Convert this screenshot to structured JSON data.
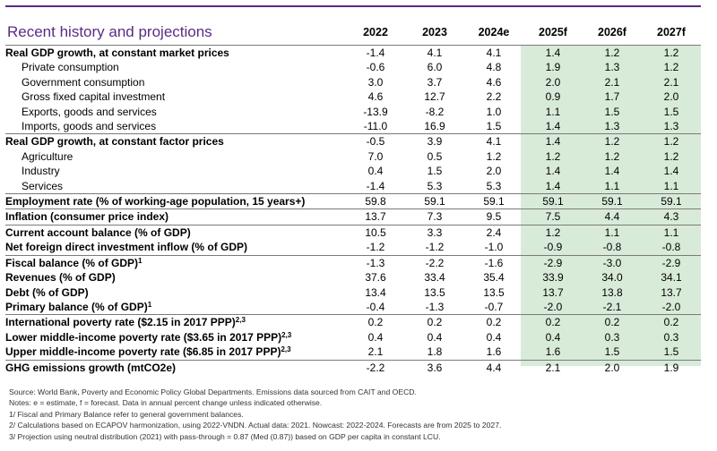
{
  "title": "Recent history and projections",
  "years": [
    "2022",
    "2023",
    "2024e",
    "2025f",
    "2026f",
    "2027f"
  ],
  "rows": [
    {
      "label": "Real GDP growth, at constant market prices",
      "level": "main",
      "sup": "",
      "values": [
        "-1.4",
        "4.1",
        "4.1",
        "1.4",
        "1.2",
        "1.2"
      ]
    },
    {
      "label": "Private consumption",
      "level": "sub",
      "sup": "",
      "values": [
        "-0.6",
        "6.0",
        "4.8",
        "1.9",
        "1.3",
        "1.2"
      ]
    },
    {
      "label": "Government consumption",
      "level": "sub",
      "sup": "",
      "values": [
        "3.0",
        "3.7",
        "4.6",
        "2.0",
        "2.1",
        "2.1"
      ]
    },
    {
      "label": "Gross fixed capital investment",
      "level": "sub",
      "sup": "",
      "values": [
        "4.6",
        "12.7",
        "2.2",
        "0.9",
        "1.7",
        "2.0"
      ]
    },
    {
      "label": "Exports, goods and services",
      "level": "sub",
      "sup": "",
      "values": [
        "-13.9",
        "-8.2",
        "1.0",
        "1.1",
        "1.5",
        "1.5"
      ]
    },
    {
      "label": "Imports, goods and services",
      "level": "sub",
      "sup": "",
      "values": [
        "-11.0",
        "16.9",
        "1.5",
        "1.4",
        "1.3",
        "1.3"
      ]
    },
    {
      "label": "Real GDP growth, at constant factor prices",
      "level": "main",
      "sup": "",
      "values": [
        "-0.5",
        "3.9",
        "4.1",
        "1.4",
        "1.2",
        "1.2"
      ]
    },
    {
      "label": "Agriculture",
      "level": "sub",
      "sup": "",
      "values": [
        "7.0",
        "0.5",
        "1.2",
        "1.2",
        "1.2",
        "1.2"
      ]
    },
    {
      "label": "Industry",
      "level": "sub",
      "sup": "",
      "values": [
        "0.4",
        "1.5",
        "2.0",
        "1.4",
        "1.4",
        "1.4"
      ]
    },
    {
      "label": "Services",
      "level": "sub",
      "sup": "",
      "values": [
        "-1.4",
        "5.3",
        "5.3",
        "1.4",
        "1.1",
        "1.1"
      ]
    },
    {
      "label": "Employment rate (% of working-age population, 15 years+)",
      "level": "main",
      "sup": "",
      "values": [
        "59.8",
        "59.1",
        "59.1",
        "59.1",
        "59.1",
        "59.1"
      ]
    },
    {
      "label": "Inflation (consumer price index)",
      "level": "main",
      "sup": "",
      "values": [
        "13.7",
        "7.3",
        "9.5",
        "7.5",
        "4.4",
        "4.3"
      ]
    },
    {
      "label": "Current account balance (% of GDP)",
      "level": "main",
      "sup": "",
      "values": [
        "10.5",
        "3.3",
        "2.4",
        "1.2",
        "1.1",
        "1.1"
      ]
    },
    {
      "label": "Net foreign direct investment inflow (% of GDP)",
      "level": "main",
      "sup": "",
      "values": [
        "-1.2",
        "-1.2",
        "-1.0",
        "-0.9",
        "-0.8",
        "-0.8"
      ]
    },
    {
      "label": "Fiscal balance (% of GDP)",
      "level": "main",
      "sup": "1",
      "values": [
        "-1.3",
        "-2.2",
        "-1.6",
        "-2.9",
        "-3.0",
        "-2.9"
      ]
    },
    {
      "label": "Revenues (% of GDP)",
      "level": "main",
      "sup": "",
      "values": [
        "37.6",
        "33.4",
        "35.4",
        "33.9",
        "34.0",
        "34.1"
      ]
    },
    {
      "label": "Debt (% of GDP)",
      "level": "main",
      "sup": "",
      "values": [
        "13.4",
        "13.5",
        "13.5",
        "13.7",
        "13.8",
        "13.7"
      ]
    },
    {
      "label": "Primary balance (% of GDP)",
      "level": "main",
      "sup": "1",
      "values": [
        "-0.4",
        "-1.3",
        "-0.7",
        "-2.0",
        "-2.1",
        "-2.0"
      ]
    },
    {
      "label": "International poverty rate ($2.15 in 2017 PPP)",
      "level": "main",
      "sup": "2,3",
      "values": [
        "0.2",
        "0.2",
        "0.2",
        "0.2",
        "0.2",
        "0.2"
      ]
    },
    {
      "label": "Lower middle-income poverty rate ($3.65 in 2017 PPP)",
      "level": "main",
      "sup": "2,3",
      "values": [
        "0.4",
        "0.4",
        "0.4",
        "0.4",
        "0.3",
        "0.3"
      ]
    },
    {
      "label": "Upper middle-income poverty rate ($6.85 in 2017 PPP)",
      "level": "main",
      "sup": "2,3",
      "values": [
        "2.1",
        "1.8",
        "1.6",
        "1.6",
        "1.5",
        "1.5"
      ]
    },
    {
      "label": "GHG emissions growth (mtCO2e)",
      "level": "main",
      "sup": "",
      "values": [
        "-2.2",
        "3.6",
        "4.4",
        "2.1",
        "2.0",
        "1.9"
      ]
    }
  ],
  "notes": [
    "Source: World Bank, Poverty and Economic Policy Global Departments. Emissions data sourced from CAIT and OECD.",
    "Notes: e = estimate, f = forecast. Data in annual percent change unless indicated otherwise.",
    "1/ Fiscal and Primary Balance refer to general government balances.",
    "2/ Calculations based on ECAPOV harmonization, using 2022-VNDN. Actual data: 2021. Nowcast: 2022-2024. Forecasts are from 2025 to 2027.",
    "3/ Projection using neutral distribution (2021) with pass-through = 0.87 (Med (0.87)) based on GDP per capita in constant LCU."
  ],
  "colors": {
    "title": "#5b2a86",
    "forecast_bg": "#d8ebd9",
    "rule": "#7a7a7a"
  }
}
